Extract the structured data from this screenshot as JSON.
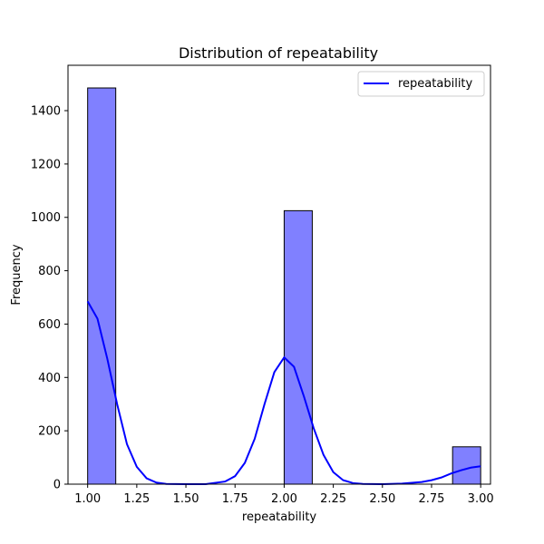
{
  "chart_data": {
    "type": "bar",
    "title": "Distribution of repeatability",
    "xlabel": "repeatability",
    "ylabel": "Frequency",
    "xlim": [
      0.9,
      3.05
    ],
    "ylim": [
      0,
      1570
    ],
    "xticks": [
      1.0,
      1.25,
      1.5,
      1.75,
      2.0,
      2.25,
      2.5,
      2.75,
      3.0
    ],
    "xtick_labels": [
      "1.00",
      "1.25",
      "1.50",
      "1.75",
      "2.00",
      "2.25",
      "2.50",
      "2.75",
      "3.00"
    ],
    "yticks": [
      0,
      200,
      400,
      600,
      800,
      1000,
      1200,
      1400
    ],
    "ytick_labels": [
      "0",
      "200",
      "400",
      "600",
      "800",
      "1000",
      "1200",
      "1400"
    ],
    "bins": [
      {
        "x0": 1.0,
        "x1": 1.143,
        "value": 1485
      },
      {
        "x0": 2.0,
        "x1": 2.143,
        "value": 1025
      },
      {
        "x0": 2.857,
        "x1": 3.0,
        "value": 140
      }
    ],
    "kde": {
      "x": [
        1.0,
        1.05,
        1.1,
        1.15,
        1.2,
        1.25,
        1.3,
        1.35,
        1.4,
        1.5,
        1.6,
        1.7,
        1.75,
        1.8,
        1.85,
        1.9,
        1.95,
        2.0,
        2.05,
        2.1,
        2.15,
        2.2,
        2.25,
        2.3,
        2.35,
        2.4,
        2.5,
        2.6,
        2.7,
        2.75,
        2.8,
        2.85,
        2.9,
        2.95,
        3.0
      ],
      "y": [
        685,
        620,
        470,
        300,
        150,
        65,
        22,
        6,
        1,
        0,
        0,
        10,
        30,
        80,
        170,
        300,
        420,
        475,
        440,
        330,
        210,
        110,
        45,
        15,
        4,
        1,
        0,
        2,
        8,
        15,
        25,
        40,
        52,
        62,
        67
      ]
    },
    "series": [
      {
        "name": "repeatability",
        "color": "#0000ff"
      }
    ],
    "bar_fill": "#8080ff",
    "bar_edge": "#000000",
    "legend": "top-right",
    "grid": false
  }
}
